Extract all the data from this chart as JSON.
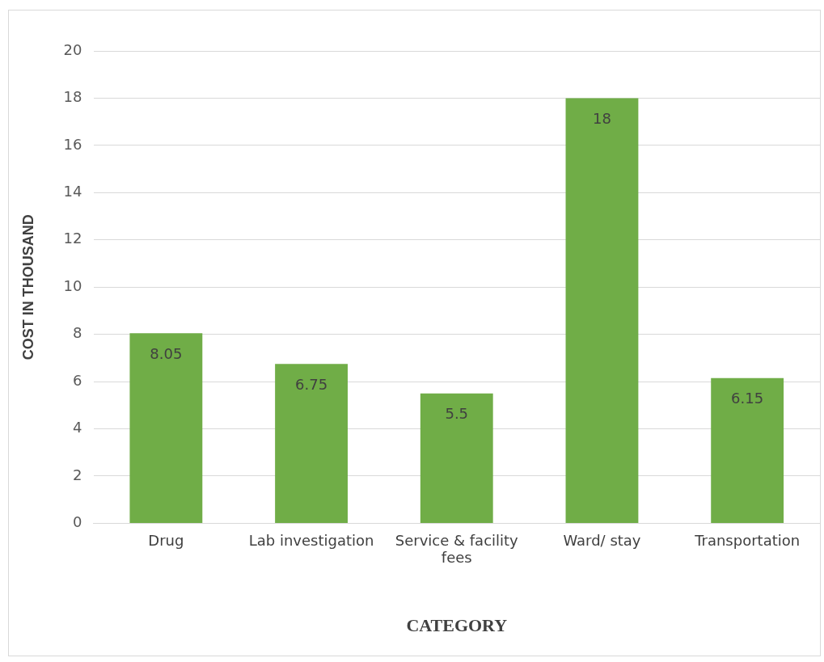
{
  "chart_data": {
    "type": "bar",
    "xlabel": "CATEGORY",
    "ylabel": "COST IN THOUSAND",
    "categories": [
      "Drug",
      "Lab investigation",
      "Service & facility fees",
      "Ward/ stay",
      "Transportation"
    ],
    "values": [
      8.05,
      6.75,
      5.5,
      18,
      6.15
    ],
    "color": "#70ad47",
    "ylim": [
      0,
      20
    ],
    "yticks": [
      0,
      2,
      4,
      6,
      8,
      10,
      12,
      14,
      16,
      18,
      20
    ],
    "grid": "y",
    "data_labels": true,
    "legend": false
  }
}
